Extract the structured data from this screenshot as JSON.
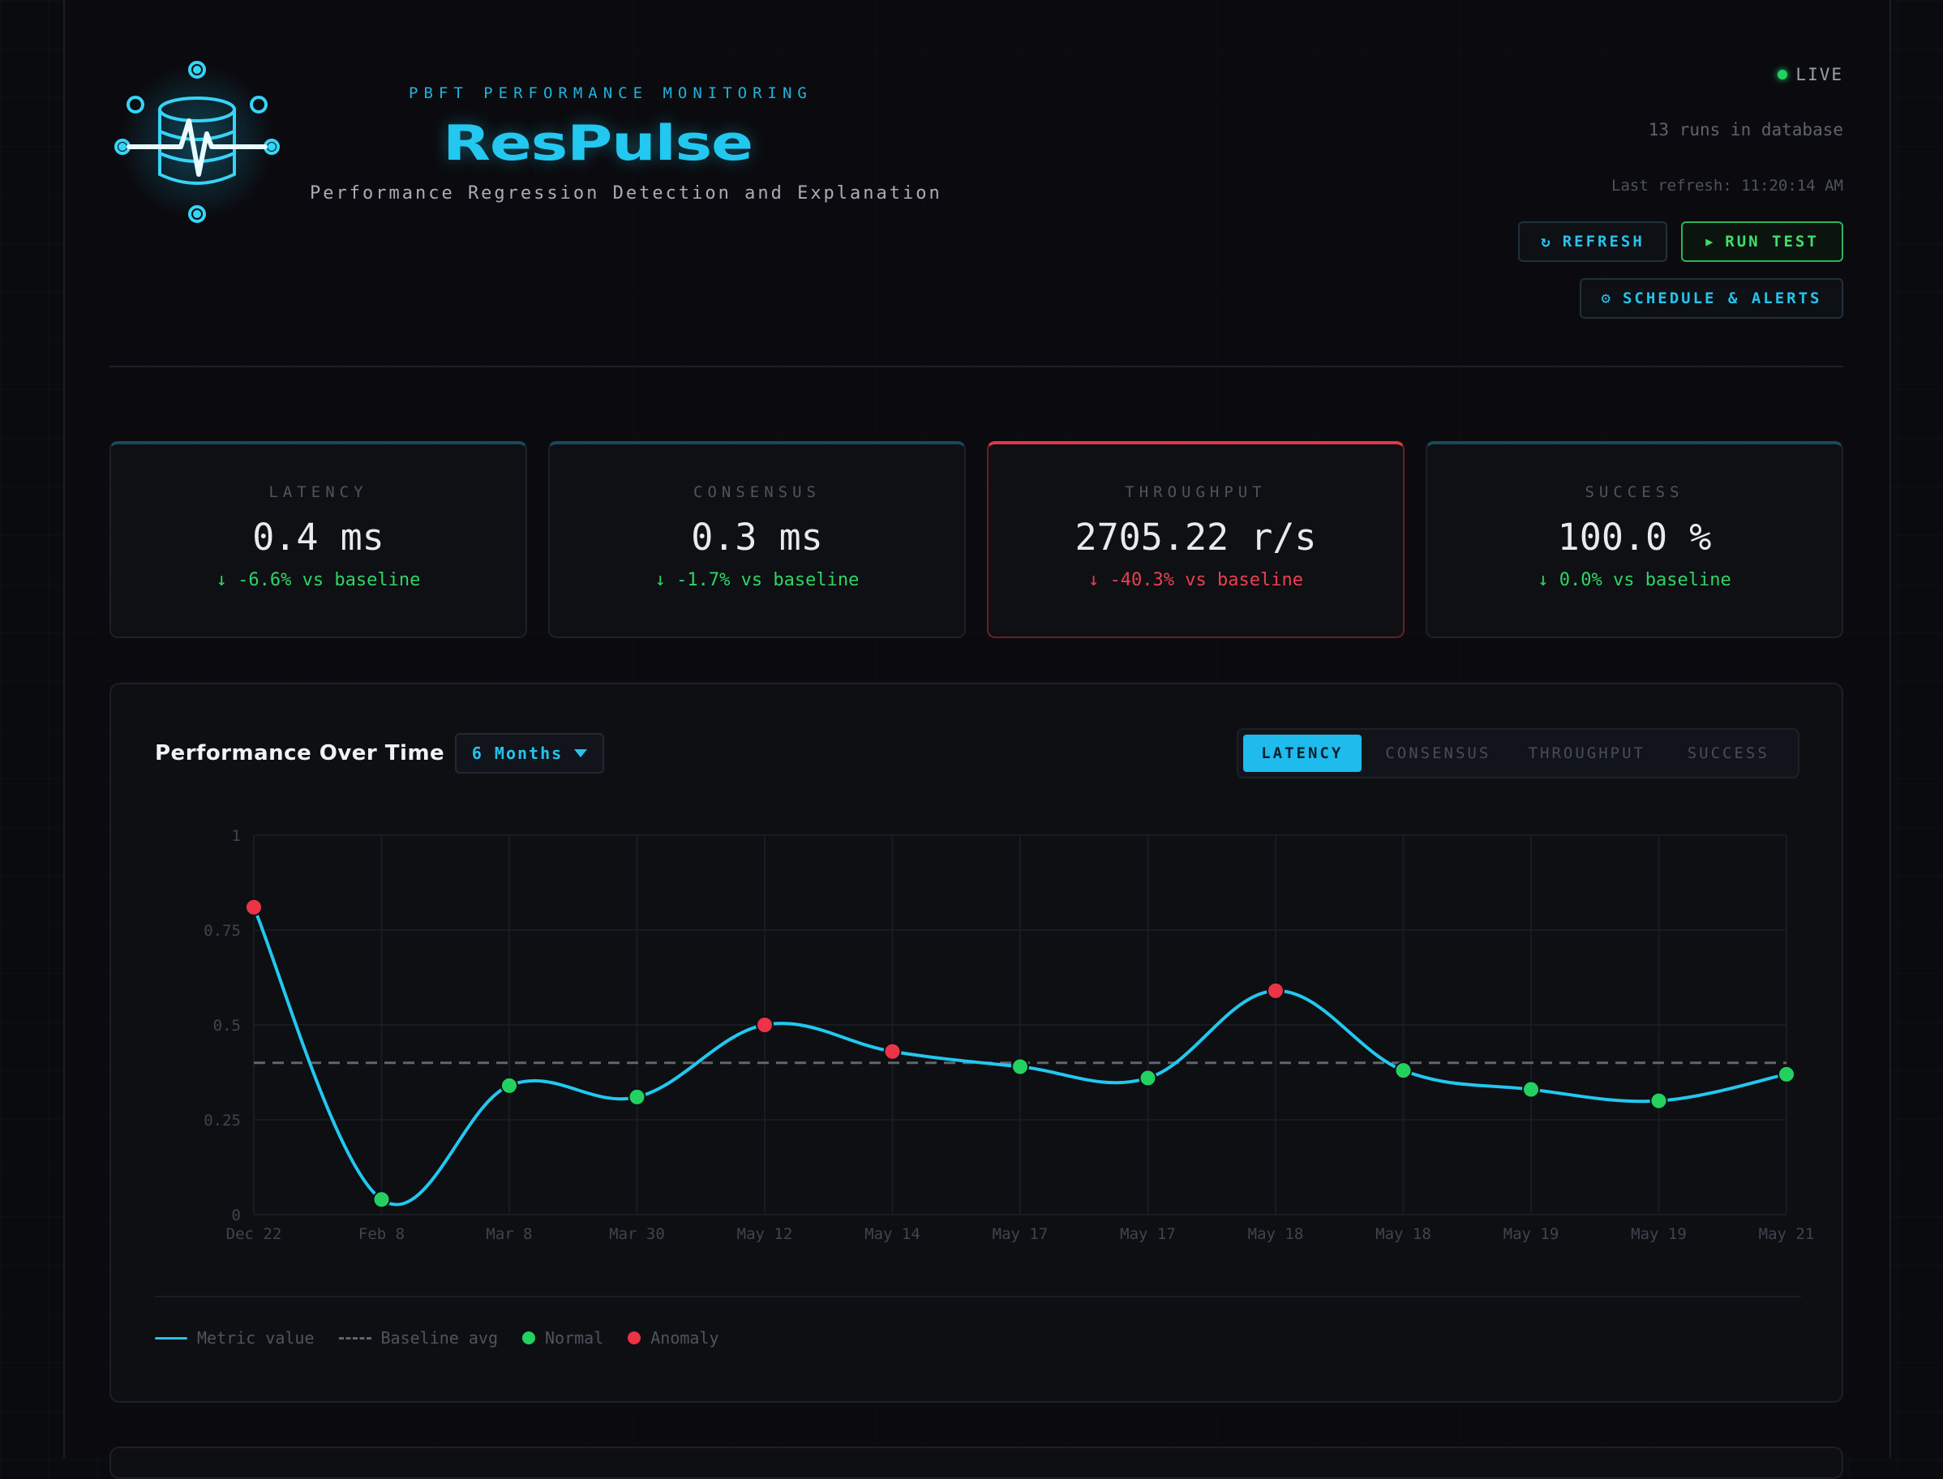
{
  "header": {
    "kicker": "PBFT PERFORMANCE MONITORING",
    "brand": "ResPulse",
    "tagline": "Performance Regression Detection and Explanation",
    "live_label": "LIVE",
    "runs_text": "13 runs in database",
    "refresh_text": "Last refresh: 11:20:14 AM",
    "refresh_button": "REFRESH",
    "run_button": "RUN TEST",
    "schedule_button": "SCHEDULE & ALERTS",
    "icons": {
      "logo": "database-pulse-icon",
      "refresh": "refresh-icon",
      "run": "play-icon",
      "schedule": "gear-icon"
    }
  },
  "kpis": [
    {
      "label": "LATENCY",
      "value": "0.4 ms",
      "delta": "↓ -6.6% vs baseline",
      "status": "normal"
    },
    {
      "label": "CONSENSUS",
      "value": "0.3 ms",
      "delta": "↓ -1.7% vs baseline",
      "status": "normal"
    },
    {
      "label": "THROUGHPUT",
      "value": "2705.22 r/s",
      "delta": "↓ -40.3% vs baseline",
      "status": "anomaly"
    },
    {
      "label": "SUCCESS",
      "value": "100.0 %",
      "delta": "↓ 0.0% vs baseline",
      "status": "normal"
    }
  ],
  "chart_panel": {
    "title": "Performance Over Time",
    "range": "6 Months",
    "tabs": [
      "LATENCY",
      "CONSENSUS",
      "THROUGHPUT",
      "SUCCESS"
    ],
    "active_tab": "LATENCY",
    "legend": {
      "metric": "Metric value",
      "baseline": "Baseline avg",
      "normal": "Normal",
      "anomaly": "Anomaly"
    }
  },
  "colors": {
    "accent": "#22c8f0",
    "normal": "#23d160",
    "anomaly": "#ec3447",
    "baseline": "#60656e"
  },
  "chart_data": {
    "type": "line",
    "x": [
      "Dec 22",
      "Feb 8",
      "Mar 8",
      "Mar 30",
      "May 12",
      "May 14",
      "May 17",
      "May 17",
      "May 18",
      "May 18",
      "May 19",
      "May 19",
      "May 21"
    ],
    "series": [
      {
        "values": [
          0.81,
          0.04,
          0.34,
          0.31,
          0.5,
          0.43,
          0.39,
          0.36,
          0.59,
          0.38,
          0.33,
          0.3,
          0.37
        ],
        "status": [
          "anomaly",
          "normal",
          "normal",
          "normal",
          "anomaly",
          "anomaly",
          "normal",
          "normal",
          "anomaly",
          "normal",
          "normal",
          "normal",
          "normal"
        ]
      }
    ],
    "baseline": 0.4,
    "yticks": [
      "0",
      "0.25",
      "0.5",
      "0.75",
      "1"
    ],
    "ylim": [
      0,
      1
    ],
    "grid": true,
    "legend": "bottom-left"
  }
}
